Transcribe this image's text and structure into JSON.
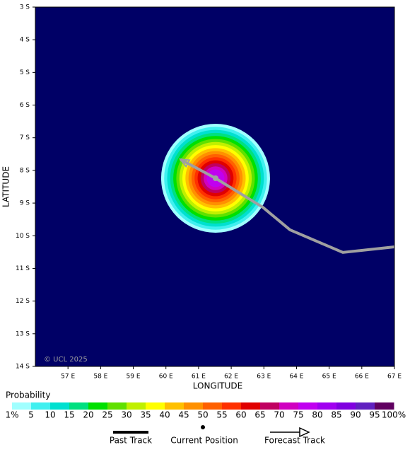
{
  "map": {
    "copyright": "© UCL 2025",
    "x_label": "LONGITUDE",
    "y_label": "LATITUDE",
    "xlim": [
      56,
      67
    ],
    "ylim": [
      3,
      14
    ],
    "xticks": [
      {
        "value": 57,
        "label": "57 E"
      },
      {
        "value": 58,
        "label": "58 E"
      },
      {
        "value": 59,
        "label": "59 E"
      },
      {
        "value": 60,
        "label": "60 E"
      },
      {
        "value": 61,
        "label": "61 E"
      },
      {
        "value": 62,
        "label": "62 E"
      },
      {
        "value": 63,
        "label": "63 E"
      },
      {
        "value": 64,
        "label": "64 E"
      },
      {
        "value": 65,
        "label": "65 E"
      },
      {
        "value": 66,
        "label": "66 E"
      },
      {
        "value": 67,
        "label": "67 E"
      }
    ],
    "yticks": [
      {
        "value": 3,
        "label": "3 S"
      },
      {
        "value": 4,
        "label": "4 S"
      },
      {
        "value": 5,
        "label": "5 S"
      },
      {
        "value": 6,
        "label": "6 S"
      },
      {
        "value": 7,
        "label": "7 S"
      },
      {
        "value": 8,
        "label": "8 S"
      },
      {
        "value": 9,
        "label": "9 S"
      },
      {
        "value": 10,
        "label": "10 S"
      },
      {
        "value": 11,
        "label": "11 S"
      },
      {
        "value": 12,
        "label": "12 S"
      },
      {
        "value": 13,
        "label": "13 S"
      },
      {
        "value": 14,
        "label": "14 S"
      }
    ],
    "background_color": "#000066",
    "forecast_track": {
      "color": "#a0a0a0",
      "lon": [
        67.0,
        65.42,
        63.8,
        62.97,
        61.52,
        60.44
      ],
      "lat": [
        10.34,
        10.51,
        9.82,
        9.13,
        8.24,
        7.66
      ]
    },
    "current_position": {
      "lon": 61.52,
      "lat": 8.24
    }
  },
  "probability_legend": {
    "title": "Probability",
    "ticks": [
      {
        "value": 1,
        "label": "1%"
      },
      5,
      10,
      15,
      20,
      25,
      30,
      35,
      40,
      45,
      50,
      55,
      60,
      65,
      70,
      75,
      80,
      85,
      90,
      95,
      {
        "value": 100,
        "label": "100%"
      }
    ],
    "colors": [
      "#a0ffff",
      "#40f0f0",
      "#00e0d0",
      "#00e080",
      "#00e000",
      "#60e000",
      "#c0f000",
      "#ffff00",
      "#ffc000",
      "#ff9000",
      "#ff6000",
      "#ff3000",
      "#e00000",
      "#c00060",
      "#d000c0",
      "#c000f0",
      "#a000f0",
      "#8000e0",
      "#6020c0",
      "#600060"
    ]
  },
  "track_legend": {
    "past": "Past Track",
    "current": "Current Position",
    "forecast": "Forecast Track"
  }
}
